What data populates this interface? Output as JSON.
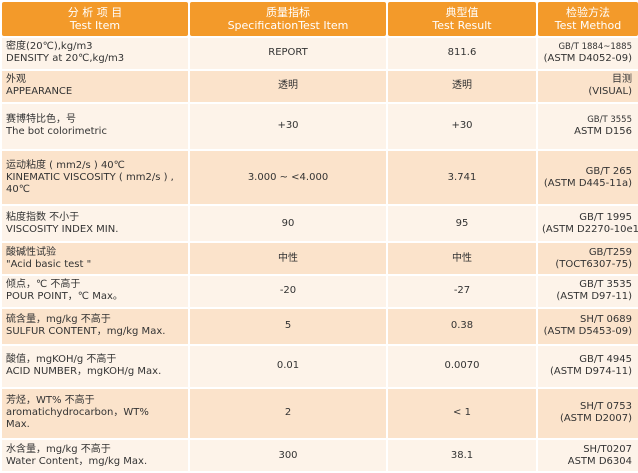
{
  "header": {
    "item": {
      "cn": "分 析 项 目",
      "en": "Test Item"
    },
    "spec": {
      "cn": "质量指标",
      "en": "SpecificationTest Item"
    },
    "result": {
      "cn": "典型值",
      "en": "Test Result"
    },
    "method": {
      "cn": "检验方法",
      "en": "Test Method"
    }
  },
  "rows": [
    {
      "item": [
        "密度(20℃),kg/m3",
        "DENSITY at 20℃,kg/m3"
      ],
      "spec": "REPORT",
      "result": "811.6",
      "method": [
        "GB/T 1884~1885",
        "(ASTM D4052-09)"
      ]
    },
    {
      "item": [
        "外观",
        "APPEARANCE"
      ],
      "spec": "透明",
      "result": "透明",
      "method": [
        "目测",
        "(VISUAL)"
      ]
    },
    {
      "item": [
        "赛博特比色，号",
        "The bot colorimetric"
      ],
      "spec": "+30",
      "result": "+30",
      "method": [
        "GB/T 3555",
        "ASTM D156"
      ]
    },
    {
      "item": [
        "运动粘度 ( mm2/s )    40℃",
        "KINEMATIC VISCOSITY ( mm2/s ) ,",
        "40℃"
      ],
      "spec": "3.000 ~ <4.000",
      "result": "3.741",
      "method": [
        "GB/T 265",
        "(ASTM D445-11a)"
      ]
    },
    {
      "item": [
        "粘度指数  不小于",
        "VISCOSITY INDEX  MIN."
      ],
      "spec": "90",
      "result": "95",
      "method": [
        "GB/T 1995",
        "(ASTM D2270-10e1)"
      ]
    },
    {
      "item": [
        "酸碱性试验",
        "\"Acid basic test \""
      ],
      "spec": "中性",
      "result": "中性",
      "method": [
        "GB/T259",
        "(TOCT6307-75)"
      ]
    },
    {
      "item": [
        "倾点，℃  不高于",
        "POUR POINT，℃  Max。"
      ],
      "spec": "-20",
      "result": "-27",
      "method": [
        "GB/T 3535",
        "(ASTM D97-11)"
      ]
    },
    {
      "item": [
        "硫含量，mg/kg  不高于",
        "SULFUR CONTENT，mg/kg Max."
      ],
      "spec": "5",
      "result": "0.38",
      "method": [
        "SH/T 0689",
        "(ASTM D5453-09)"
      ]
    },
    {
      "item": [
        "酸值，mgKOH/g  不高于",
        "ACID NUMBER，mgKOH/g Max."
      ],
      "spec": "0.01",
      "result": "0.0070",
      "method": [
        "GB/T 4945",
        "(ASTM D974-11)"
      ]
    },
    {
      "item": [
        "芳烃，WT%  不高于",
        "aromatichydrocarbon，WT%",
        "Max."
      ],
      "spec": "2",
      "result": "< 1",
      "method": [
        "SH/T 0753",
        "(ASTM D2007)"
      ]
    },
    {
      "item": [
        "水含量，mg/kg  不高于",
        "Water Content，mg/kg   Max."
      ],
      "spec": "300",
      "result": "38.1",
      "method": [
        "SH/T0207",
        "ASTM D6304"
      ]
    }
  ],
  "colors": {
    "header": "#f39a2a",
    "row_light": "#fdf3e9",
    "row_dark": "#fbe3cb",
    "text": "#333333"
  }
}
